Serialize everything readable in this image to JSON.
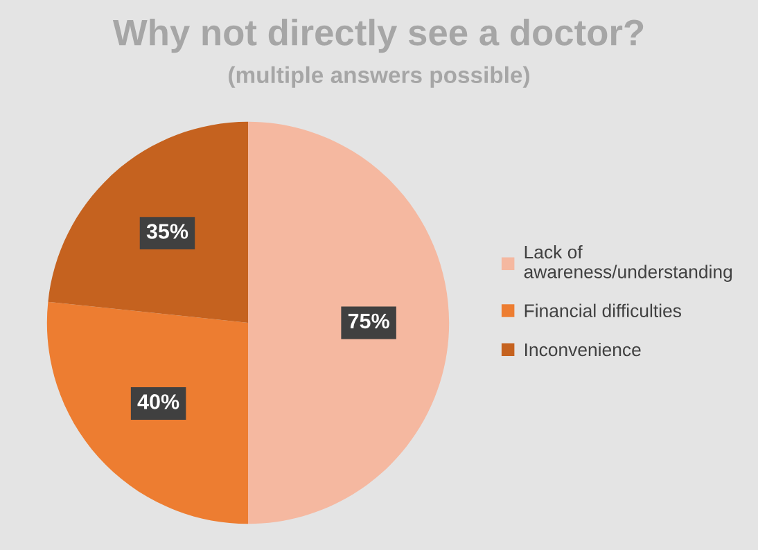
{
  "chart_data": {
    "type": "pie",
    "title": "Why not directly see a doctor?",
    "subtitle": "(multiple answers possible)",
    "categories": [
      "Lack of\nawareness/understanding",
      "Financial difficulties",
      "Inconvenience"
    ],
    "values": [
      75,
      40,
      35
    ],
    "colors": [
      "#f5b8a0",
      "#ed7d31",
      "#c5621f"
    ],
    "value_labels": [
      "75%",
      "40%",
      "35%"
    ],
    "legend": "right"
  }
}
